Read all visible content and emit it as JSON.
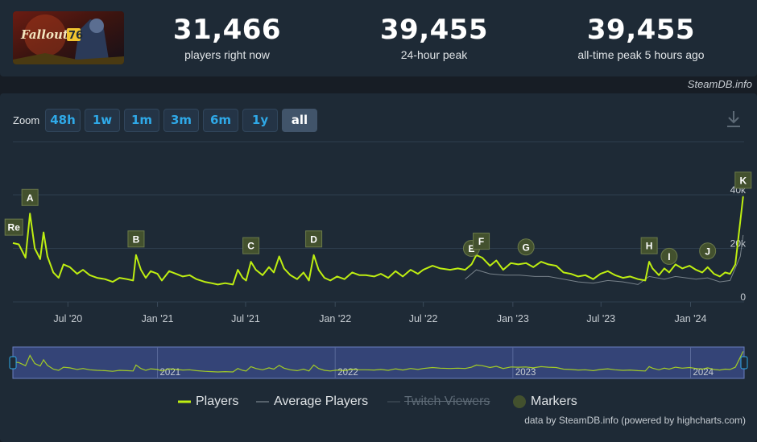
{
  "app": {
    "game_logo_text": "Fallout 76"
  },
  "stats": [
    {
      "value": "31,466",
      "label": "players right now"
    },
    {
      "value": "39,455",
      "label": "24-hour peak"
    },
    {
      "value": "39,455",
      "label": "all-time peak 5 hours ago"
    }
  ],
  "credit_top": "SteamDB.info",
  "zoom": {
    "label": "Zoom",
    "buttons": [
      "48h",
      "1w",
      "1m",
      "3m",
      "6m",
      "1y",
      "all"
    ],
    "active": "all"
  },
  "legend": {
    "players": "Players",
    "average": "Average Players",
    "twitch": "Twitch Viewers",
    "markers": "Markers"
  },
  "credit_bottom": "data by SteamDB.info (powered by highcharts.com)",
  "colors": {
    "players": "#beee11",
    "average": "#8f98a0",
    "marker_fill": "#43512e",
    "navigator_bg": "#3c4d8e",
    "accent": "#2fa9e8"
  },
  "chart_data": {
    "type": "line",
    "x_unit": "date",
    "x_range": [
      "2020-03-10",
      "2024-04-20"
    ],
    "y_ticks": [
      "0",
      "20k",
      "40k"
    ],
    "ylim": [
      0,
      40000
    ],
    "grid": true,
    "x_tick_labels": [
      {
        "date": "2020-07-01",
        "label": "Jul '20"
      },
      {
        "date": "2021-01-01",
        "label": "Jan '21"
      },
      {
        "date": "2021-07-01",
        "label": "Jul '21"
      },
      {
        "date": "2022-01-01",
        "label": "Jan '22"
      },
      {
        "date": "2022-07-01",
        "label": "Jul '22"
      },
      {
        "date": "2023-01-01",
        "label": "Jan '23"
      },
      {
        "date": "2023-07-01",
        "label": "Jul '23"
      },
      {
        "date": "2024-01-01",
        "label": "Jan '24"
      }
    ],
    "navigator_year_labels": [
      {
        "date": "2021-01-01",
        "label": "2021"
      },
      {
        "date": "2022-01-01",
        "label": "2022"
      },
      {
        "date": "2023-01-01",
        "label": "2023"
      },
      {
        "date": "2024-01-01",
        "label": "2024"
      }
    ],
    "series": [
      {
        "name": "Players",
        "points": [
          [
            "2020-03-10",
            22000
          ],
          [
            "2020-03-22",
            21500
          ],
          [
            "2020-04-05",
            16500
          ],
          [
            "2020-04-14",
            33000
          ],
          [
            "2020-04-24",
            20000
          ],
          [
            "2020-05-05",
            16000
          ],
          [
            "2020-05-12",
            26000
          ],
          [
            "2020-05-20",
            17000
          ],
          [
            "2020-06-01",
            11000
          ],
          [
            "2020-06-12",
            9000
          ],
          [
            "2020-06-22",
            14000
          ],
          [
            "2020-07-05",
            13000
          ],
          [
            "2020-07-20",
            10500
          ],
          [
            "2020-08-01",
            12000
          ],
          [
            "2020-08-15",
            10000
          ],
          [
            "2020-08-30",
            9000
          ],
          [
            "2020-09-15",
            8500
          ],
          [
            "2020-10-01",
            7500
          ],
          [
            "2020-10-15",
            9000
          ],
          [
            "2020-10-30",
            8500
          ],
          [
            "2020-11-12",
            8000
          ],
          [
            "2020-11-18",
            17500
          ],
          [
            "2020-11-28",
            12000
          ],
          [
            "2020-12-08",
            9000
          ],
          [
            "2020-12-18",
            11500
          ],
          [
            "2021-01-01",
            10500
          ],
          [
            "2021-01-10",
            8000
          ],
          [
            "2021-01-25",
            11500
          ],
          [
            "2021-02-08",
            10500
          ],
          [
            "2021-02-22",
            9500
          ],
          [
            "2021-03-08",
            10000
          ],
          [
            "2021-03-22",
            8500
          ],
          [
            "2021-04-08",
            7500
          ],
          [
            "2021-04-22",
            7000
          ],
          [
            "2021-05-05",
            6500
          ],
          [
            "2021-05-20",
            7000
          ],
          [
            "2021-06-05",
            6500
          ],
          [
            "2021-06-15",
            12000
          ],
          [
            "2021-06-25",
            9000
          ],
          [
            "2021-07-02",
            8000
          ],
          [
            "2021-07-12",
            15000
          ],
          [
            "2021-07-22",
            12000
          ],
          [
            "2021-08-05",
            10000
          ],
          [
            "2021-08-18",
            13000
          ],
          [
            "2021-08-28",
            11000
          ],
          [
            "2021-09-08",
            17000
          ],
          [
            "2021-09-18",
            12500
          ],
          [
            "2021-10-01",
            10000
          ],
          [
            "2021-10-15",
            8500
          ],
          [
            "2021-10-28",
            11000
          ],
          [
            "2021-11-08",
            8000
          ],
          [
            "2021-11-18",
            17500
          ],
          [
            "2021-11-28",
            12000
          ],
          [
            "2021-12-10",
            9000
          ],
          [
            "2021-12-22",
            8000
          ],
          [
            "2022-01-05",
            9500
          ],
          [
            "2022-01-20",
            8500
          ],
          [
            "2022-02-05",
            11000
          ],
          [
            "2022-02-20",
            10000
          ],
          [
            "2022-03-05",
            10000
          ],
          [
            "2022-03-22",
            9500
          ],
          [
            "2022-04-05",
            10500
          ],
          [
            "2022-04-20",
            9000
          ],
          [
            "2022-05-05",
            11500
          ],
          [
            "2022-05-20",
            9500
          ],
          [
            "2022-06-05",
            12000
          ],
          [
            "2022-06-20",
            10500
          ],
          [
            "2022-07-01",
            12000
          ],
          [
            "2022-07-20",
            13500
          ],
          [
            "2022-08-05",
            12500
          ],
          [
            "2022-08-25",
            12000
          ],
          [
            "2022-09-10",
            12500
          ],
          [
            "2022-09-25",
            12000
          ],
          [
            "2022-10-08",
            14000
          ],
          [
            "2022-10-18",
            17500
          ],
          [
            "2022-10-30",
            16500
          ],
          [
            "2022-11-15",
            13500
          ],
          [
            "2022-11-28",
            15500
          ],
          [
            "2022-12-12",
            12000
          ],
          [
            "2022-12-28",
            14500
          ],
          [
            "2023-01-12",
            14000
          ],
          [
            "2023-01-28",
            14500
          ],
          [
            "2023-02-12",
            13000
          ],
          [
            "2023-02-28",
            15000
          ],
          [
            "2023-03-15",
            14000
          ],
          [
            "2023-03-31",
            13500
          ],
          [
            "2023-04-15",
            11000
          ],
          [
            "2023-04-30",
            10500
          ],
          [
            "2023-05-15",
            9500
          ],
          [
            "2023-05-30",
            10000
          ],
          [
            "2023-06-15",
            8500
          ],
          [
            "2023-06-30",
            10500
          ],
          [
            "2023-07-15",
            11500
          ],
          [
            "2023-07-30",
            10000
          ],
          [
            "2023-08-15",
            9000
          ],
          [
            "2023-08-30",
            9500
          ],
          [
            "2023-09-15",
            8500
          ],
          [
            "2023-09-30",
            8000
          ],
          [
            "2023-10-08",
            15000
          ],
          [
            "2023-10-15",
            12500
          ],
          [
            "2023-10-28",
            10000
          ],
          [
            "2023-11-08",
            12500
          ],
          [
            "2023-11-18",
            11000
          ],
          [
            "2023-12-01",
            14000
          ],
          [
            "2023-12-15",
            12500
          ],
          [
            "2023-12-30",
            13500
          ],
          [
            "2024-01-12",
            12000
          ],
          [
            "2024-01-25",
            11000
          ],
          [
            "2024-02-05",
            13000
          ],
          [
            "2024-02-18",
            10500
          ],
          [
            "2024-03-01",
            9500
          ],
          [
            "2024-03-12",
            11000
          ],
          [
            "2024-03-22",
            10500
          ],
          [
            "2024-04-02",
            14000
          ],
          [
            "2024-04-12",
            30000
          ],
          [
            "2024-04-18",
            39455
          ]
        ]
      },
      {
        "name": "Average Players",
        "points": [
          [
            "2022-09-25",
            8500
          ],
          [
            "2022-10-18",
            12000
          ],
          [
            "2022-11-15",
            10500
          ],
          [
            "2022-12-15",
            10000
          ],
          [
            "2023-01-15",
            10000
          ],
          [
            "2023-02-15",
            9500
          ],
          [
            "2023-03-15",
            9500
          ],
          [
            "2023-04-15",
            8500
          ],
          [
            "2023-05-15",
            7500
          ],
          [
            "2023-06-15",
            7000
          ],
          [
            "2023-07-15",
            8000
          ],
          [
            "2023-08-15",
            7500
          ],
          [
            "2023-09-15",
            6500
          ],
          [
            "2023-10-08",
            9500
          ],
          [
            "2023-11-08",
            8500
          ],
          [
            "2023-12-01",
            9500
          ],
          [
            "2024-01-12",
            8500
          ],
          [
            "2024-02-05",
            9000
          ],
          [
            "2024-03-01",
            7500
          ],
          [
            "2024-03-22",
            8000
          ],
          [
            "2024-04-12",
            17000
          ],
          [
            "2024-04-18",
            25000
          ]
        ]
      }
    ],
    "markers": [
      {
        "label": "Re",
        "date": "2020-03-12"
      },
      {
        "label": "A",
        "date": "2020-04-14"
      },
      {
        "label": "B",
        "date": "2020-11-18"
      },
      {
        "label": "C",
        "date": "2021-07-12"
      },
      {
        "label": "D",
        "date": "2021-11-18"
      },
      {
        "label": "E",
        "date": "2022-10-08"
      },
      {
        "label": "F",
        "date": "2022-10-28"
      },
      {
        "label": "G",
        "date": "2023-01-28"
      },
      {
        "label": "H",
        "date": "2023-10-08"
      },
      {
        "label": "I",
        "date": "2023-11-18"
      },
      {
        "label": "J",
        "date": "2024-02-05"
      },
      {
        "label": "K",
        "date": "2024-04-18"
      }
    ]
  }
}
